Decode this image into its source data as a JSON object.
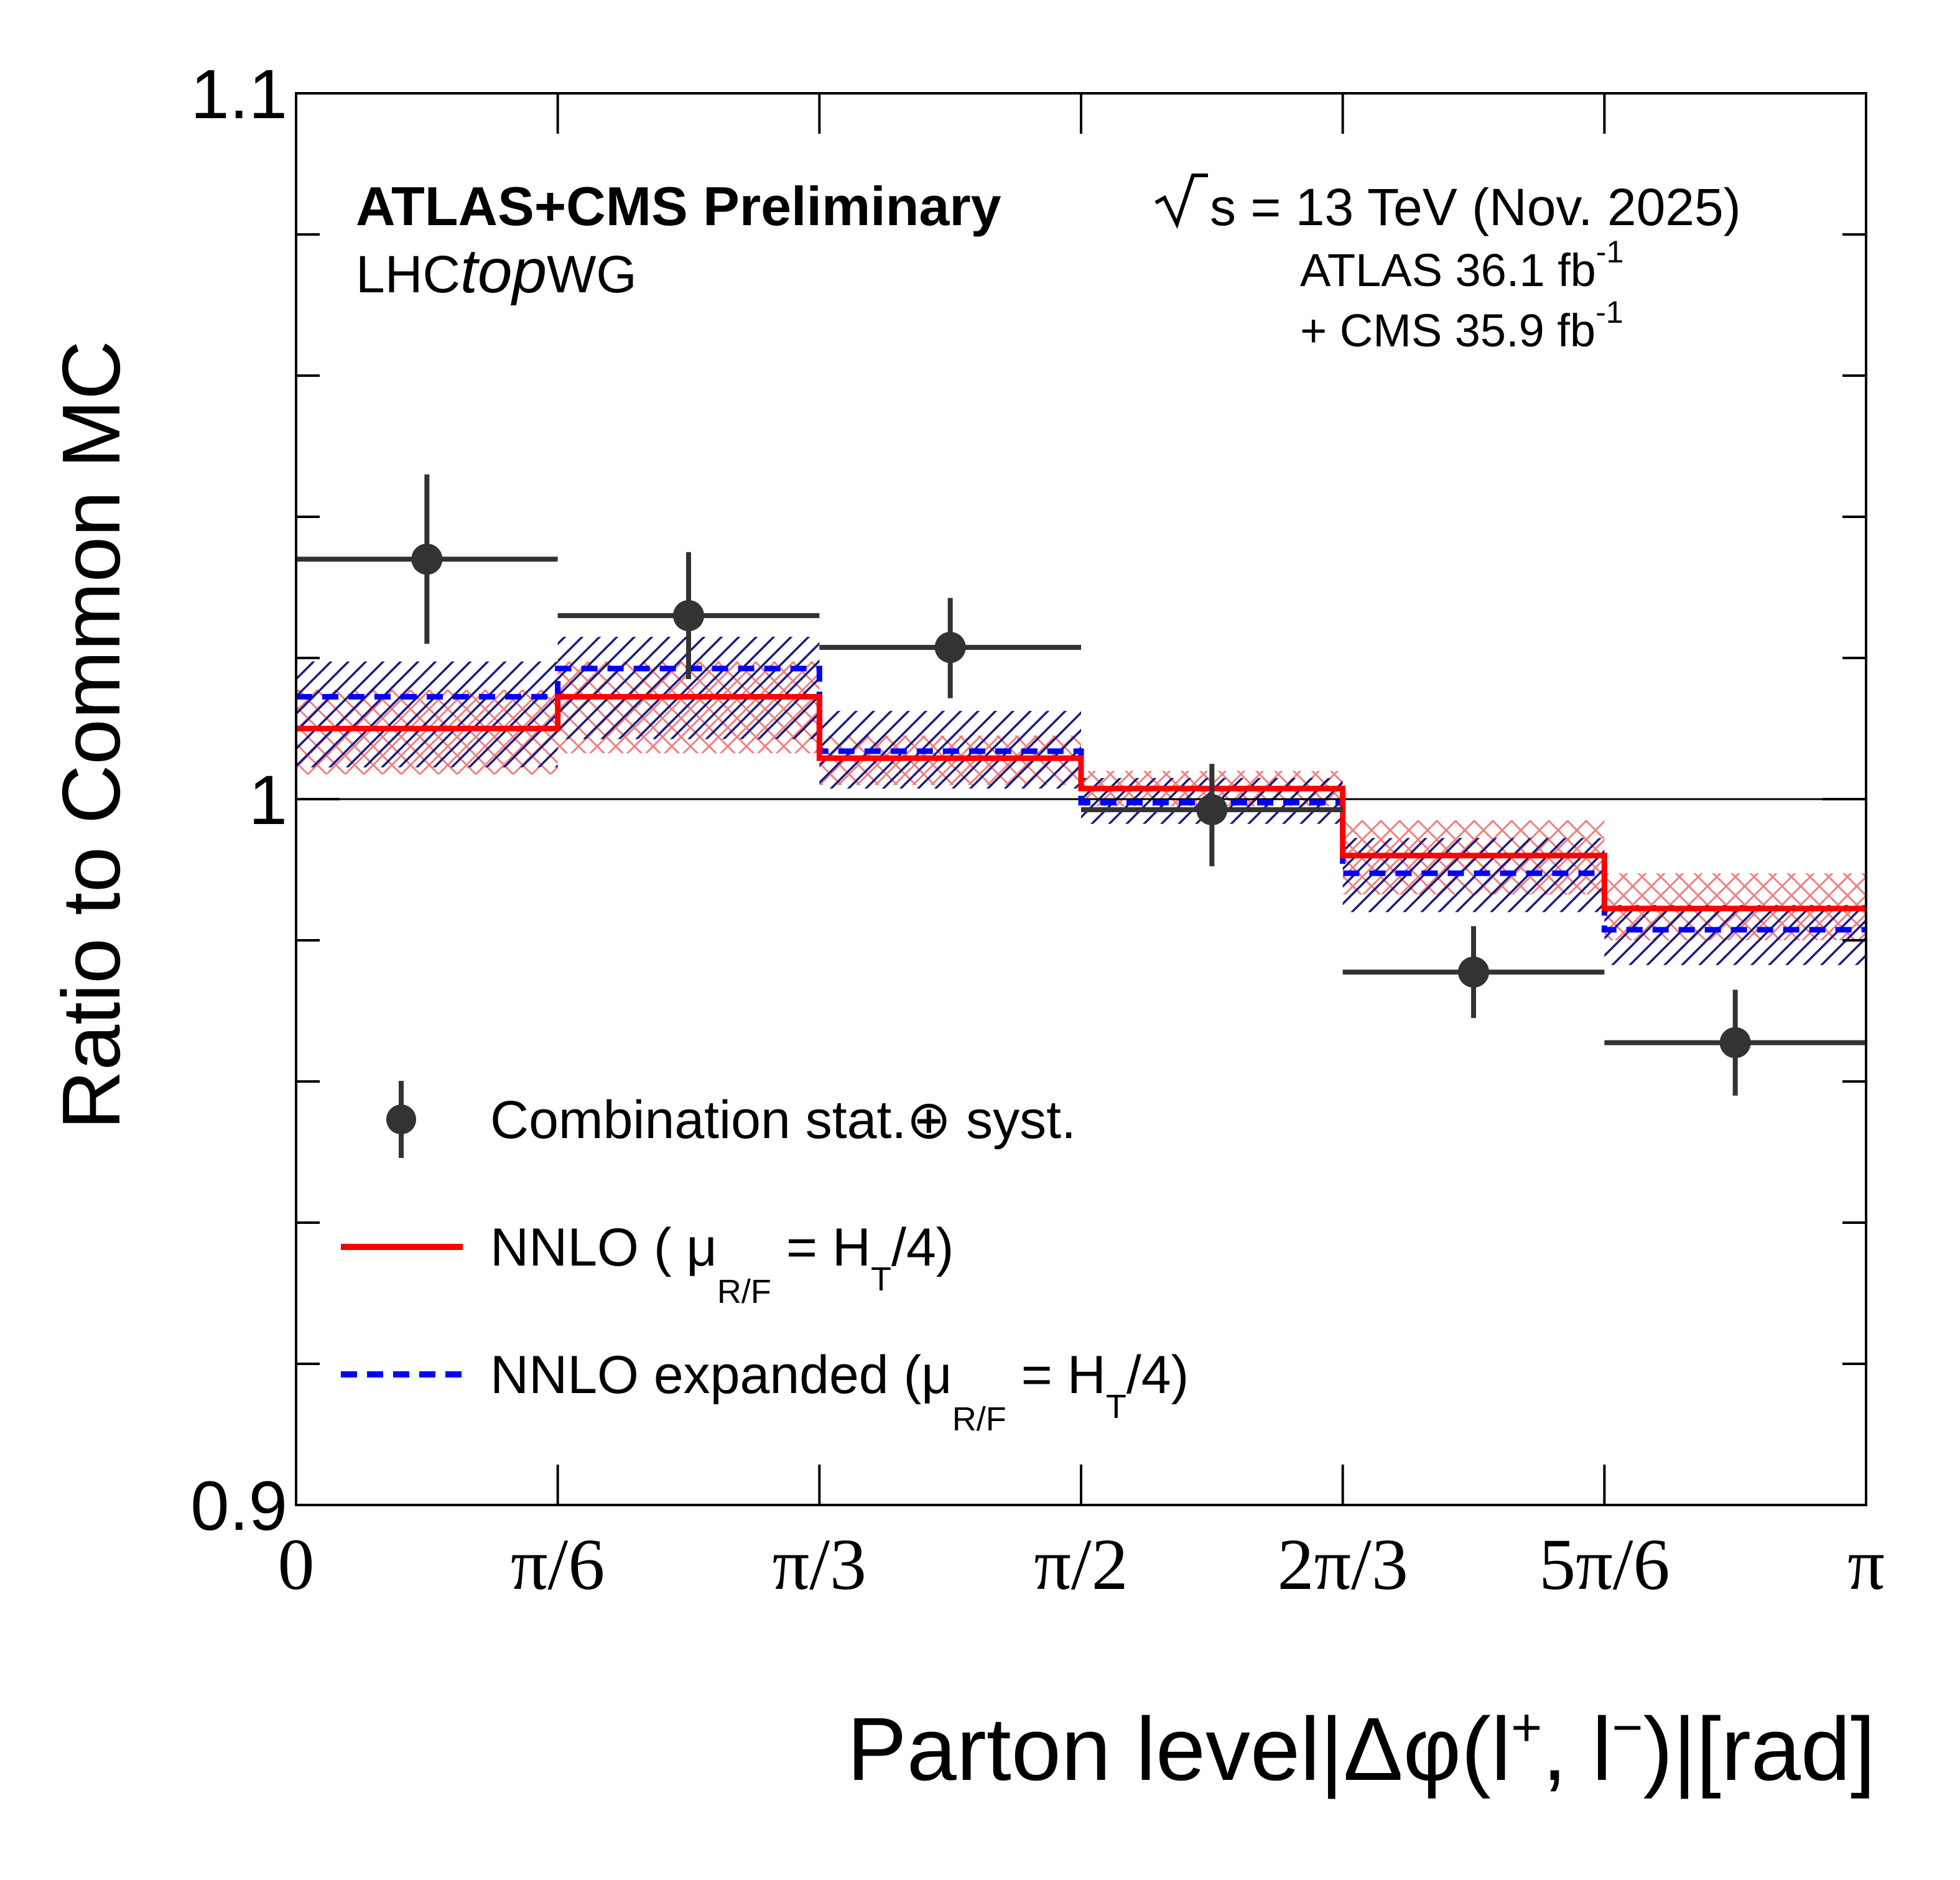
{
  "chart_data": {
    "type": "step",
    "title": "",
    "xlabel": "Parton level|Δφ(l⁺, l⁻)|[rad]",
    "xlabel_parts": {
      "prefix": "Parton level",
      "delta_phi": "Δφ(l",
      "plus": "+",
      "comma": ", l",
      "minus": "−",
      "close": ")",
      "unit": "[rad]"
    },
    "ylabel": "Ratio to Common MC",
    "ylim": [
      0.9,
      1.1
    ],
    "xlim": [
      0,
      3.14159265
    ],
    "bin_edges": [
      0,
      0.5235988,
      1.0471976,
      1.5707963,
      2.0943951,
      2.6179939,
      3.1415927
    ],
    "x_tick_labels": [
      "0",
      "π/6",
      "π/3",
      "π/2",
      "2π/3",
      "5π/6",
      "π"
    ],
    "y_tick_labels": [
      {
        "value": 0.9,
        "label": "0.9"
      },
      {
        "value": 1.0,
        "label": "1"
      },
      {
        "value": 1.1,
        "label": "1.1"
      }
    ],
    "y_minor_ticks": [
      0.92,
      0.94,
      0.96,
      0.98,
      1.02,
      1.04,
      1.06,
      1.08
    ],
    "reference_line": 1.0,
    "series": [
      {
        "name": "Combination stat.⊕ syst.",
        "kind": "points",
        "color": "#333333",
        "values": [
          1.034,
          1.026,
          1.0215,
          0.9985,
          0.9755,
          0.9655
        ],
        "err_low": [
          0.012,
          0.009,
          0.0072,
          0.008,
          0.0065,
          0.0075
        ],
        "err_high": [
          0.012,
          0.009,
          0.007,
          0.0065,
          0.0065,
          0.0075
        ]
      },
      {
        "name": "NNLO ( μR/F = HT/4)",
        "kind": "step",
        "color": "#ff0000",
        "values": [
          1.01,
          1.0145,
          1.0058,
          1.0015,
          0.992,
          0.9845
        ],
        "band_low": [
          1.0035,
          1.0065,
          1.002,
          0.999,
          0.9865,
          0.98
        ],
        "band_high": [
          1.0155,
          1.0195,
          1.009,
          1.004,
          0.997,
          0.9895
        ],
        "band_color": "#f08080"
      },
      {
        "name": "NNLO expanded (μR/F = HT/4)",
        "kind": "step-dashed",
        "color": "#0000ff",
        "values": [
          1.0145,
          1.0185,
          1.0068,
          0.9995,
          0.9895,
          0.9815
        ],
        "band_low": [
          1.0045,
          1.0085,
          1.0015,
          0.9965,
          0.984,
          0.9765
        ],
        "band_high": [
          1.0195,
          1.023,
          1.0125,
          1.003,
          0.9945,
          0.985
        ],
        "band_color": "#1a1a80"
      }
    ]
  },
  "annotations": {
    "experiment": "ATLAS+CMS Preliminary",
    "wg_prefix": "LHC",
    "wg_italic": "top",
    "wg_suffix": "WG",
    "energy": "s = 13 TeV (Nov. 2025)",
    "lumi_atlas": "ATLAS 36.1 fb",
    "lumi_cms": "+ CMS 35.9 fb",
    "lumi_exp": "-1"
  },
  "legend": {
    "data_label": "Combination stat.⊕ syst.",
    "nnlo_prefix": "NNLO ( μ",
    "nnlo_sub": "R/F",
    "nnlo_mid": " = H",
    "nnlo_sub2": "T",
    "nnlo_suffix": "/4)",
    "exp_prefix": "NNLO expanded (μ",
    "exp_sub": "R/F",
    "exp_mid": " = H",
    "exp_sub2": "T",
    "exp_suffix": "/4)"
  }
}
